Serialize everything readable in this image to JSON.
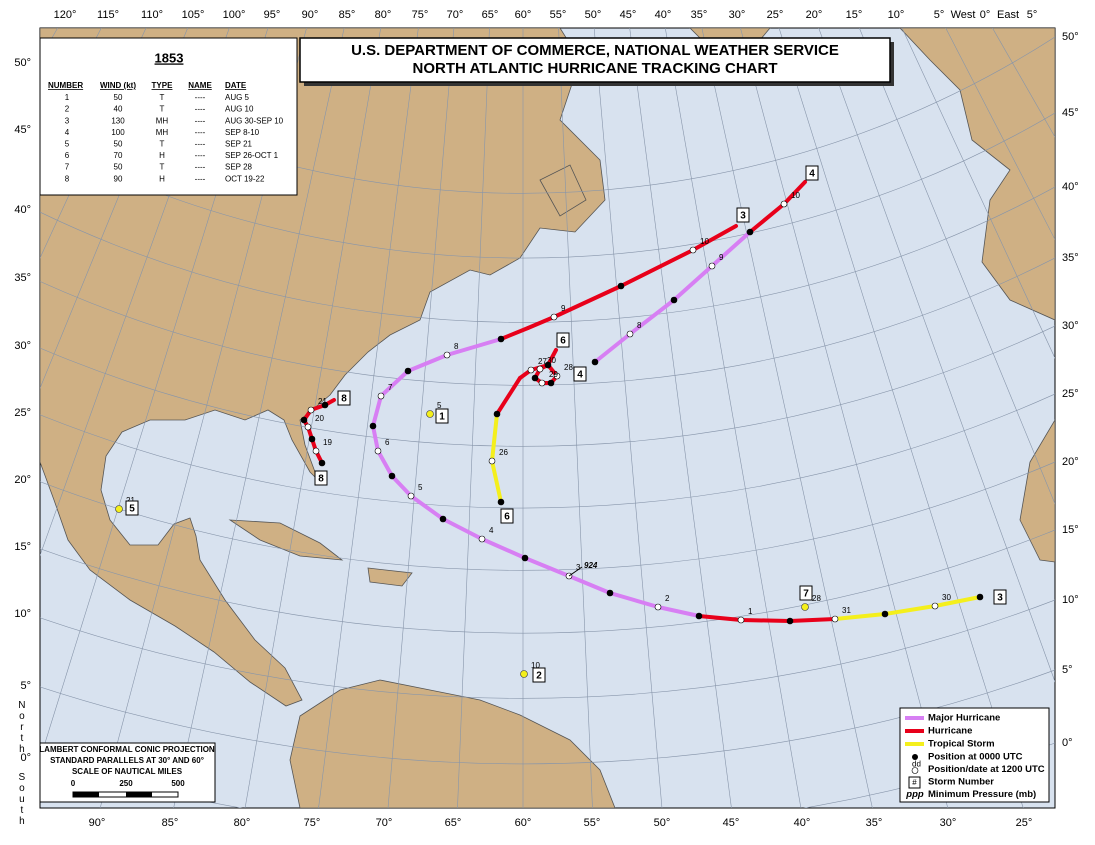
{
  "header": {
    "title_line1": "U.S. DEPARTMENT OF COMMERCE, NATIONAL WEATHER SERVICE",
    "title_line2": "NORTH ATLANTIC HURRICANE TRACKING CHART"
  },
  "table": {
    "year": "1853",
    "columns": [
      "NUMBER",
      "WIND (kt)",
      "TYPE",
      "NAME",
      "DATE"
    ],
    "rows": [
      [
        "1",
        "50",
        "T",
        "----",
        "AUG 5"
      ],
      [
        "2",
        "40",
        "T",
        "----",
        "AUG 10"
      ],
      [
        "3",
        "130",
        "MH",
        "----",
        "AUG 30-SEP 10"
      ],
      [
        "4",
        "100",
        "MH",
        "----",
        "SEP 8-10"
      ],
      [
        "5",
        "50",
        "T",
        "----",
        "SEP 21"
      ],
      [
        "6",
        "70",
        "H",
        "----",
        "SEP 26-OCT 1"
      ],
      [
        "7",
        "50",
        "T",
        "----",
        "SEP 28"
      ],
      [
        "8",
        "90",
        "H",
        "----",
        "OCT 19-22"
      ]
    ]
  },
  "axes": {
    "top": [
      "120°",
      "115°",
      "110°",
      "105°",
      "100°",
      "95°",
      "90°",
      "85°",
      "80°",
      "75°",
      "70°",
      "65°",
      "60°",
      "55°",
      "50°",
      "45°",
      "40°",
      "35°",
      "30°",
      "25°",
      "20°",
      "15°",
      "10°",
      "5°",
      "West",
      "0°",
      "East",
      "5°"
    ],
    "bottom": [
      "90°",
      "85°",
      "80°",
      "75°",
      "70°",
      "65°",
      "60°",
      "55°",
      "50°",
      "45°",
      "40°",
      "35°",
      "30°",
      "25°"
    ],
    "left": [
      "50°",
      "45°",
      "40°",
      "35°",
      "30°",
      "25°",
      "20°",
      "15°",
      "10°",
      "5°",
      "0°"
    ],
    "right": [
      "50°",
      "45°",
      "40°",
      "35°",
      "30°",
      "25°",
      "20°",
      "15°",
      "10°",
      "5°",
      "0°"
    ],
    "north": "North",
    "south": "South"
  },
  "storms": [
    {
      "number": "1",
      "dates": [
        "5"
      ]
    },
    {
      "number": "2",
      "dates": [
        "10"
      ]
    },
    {
      "number": "3",
      "dates": [
        "30",
        "31",
        "1",
        "2",
        "3",
        "4",
        "5",
        "6",
        "7",
        "8",
        "9",
        "10"
      ],
      "pressure": "924"
    },
    {
      "number": "4",
      "dates": [
        "8",
        "9",
        "10"
      ]
    },
    {
      "number": "5",
      "dates": [
        "21"
      ]
    },
    {
      "number": "6",
      "dates": [
        "26",
        "27",
        "28",
        "29",
        "30"
      ]
    },
    {
      "number": "7",
      "dates": [
        "28"
      ]
    },
    {
      "number": "8",
      "dates": [
        "19",
        "20",
        "21"
      ]
    }
  ],
  "legend": {
    "lines": [
      {
        "label": "Major Hurricane",
        "color": "#d77ff3"
      },
      {
        "label": "Hurricane",
        "color": "#e8001a"
      },
      {
        "label": "Tropical Storm",
        "color": "#f4ef1c"
      }
    ],
    "symbols": [
      {
        "symbol": "",
        "label": "Position at 0000 UTC"
      },
      {
        "symbol": "dd",
        "label": "Position/date at 1200 UTC"
      },
      {
        "symbol": "#",
        "label": "Storm Number"
      },
      {
        "symbol": "ppp",
        "label": "Minimum Pressure (mb)"
      }
    ]
  },
  "projection": {
    "lines": [
      "LAMBERT CONFORMAL CONIC PROJECTION",
      "STANDARD PARALLELS AT 30° AND 60°",
      "SCALE OF NAUTICAL MILES"
    ],
    "scale": [
      "0",
      "250",
      "500"
    ]
  }
}
